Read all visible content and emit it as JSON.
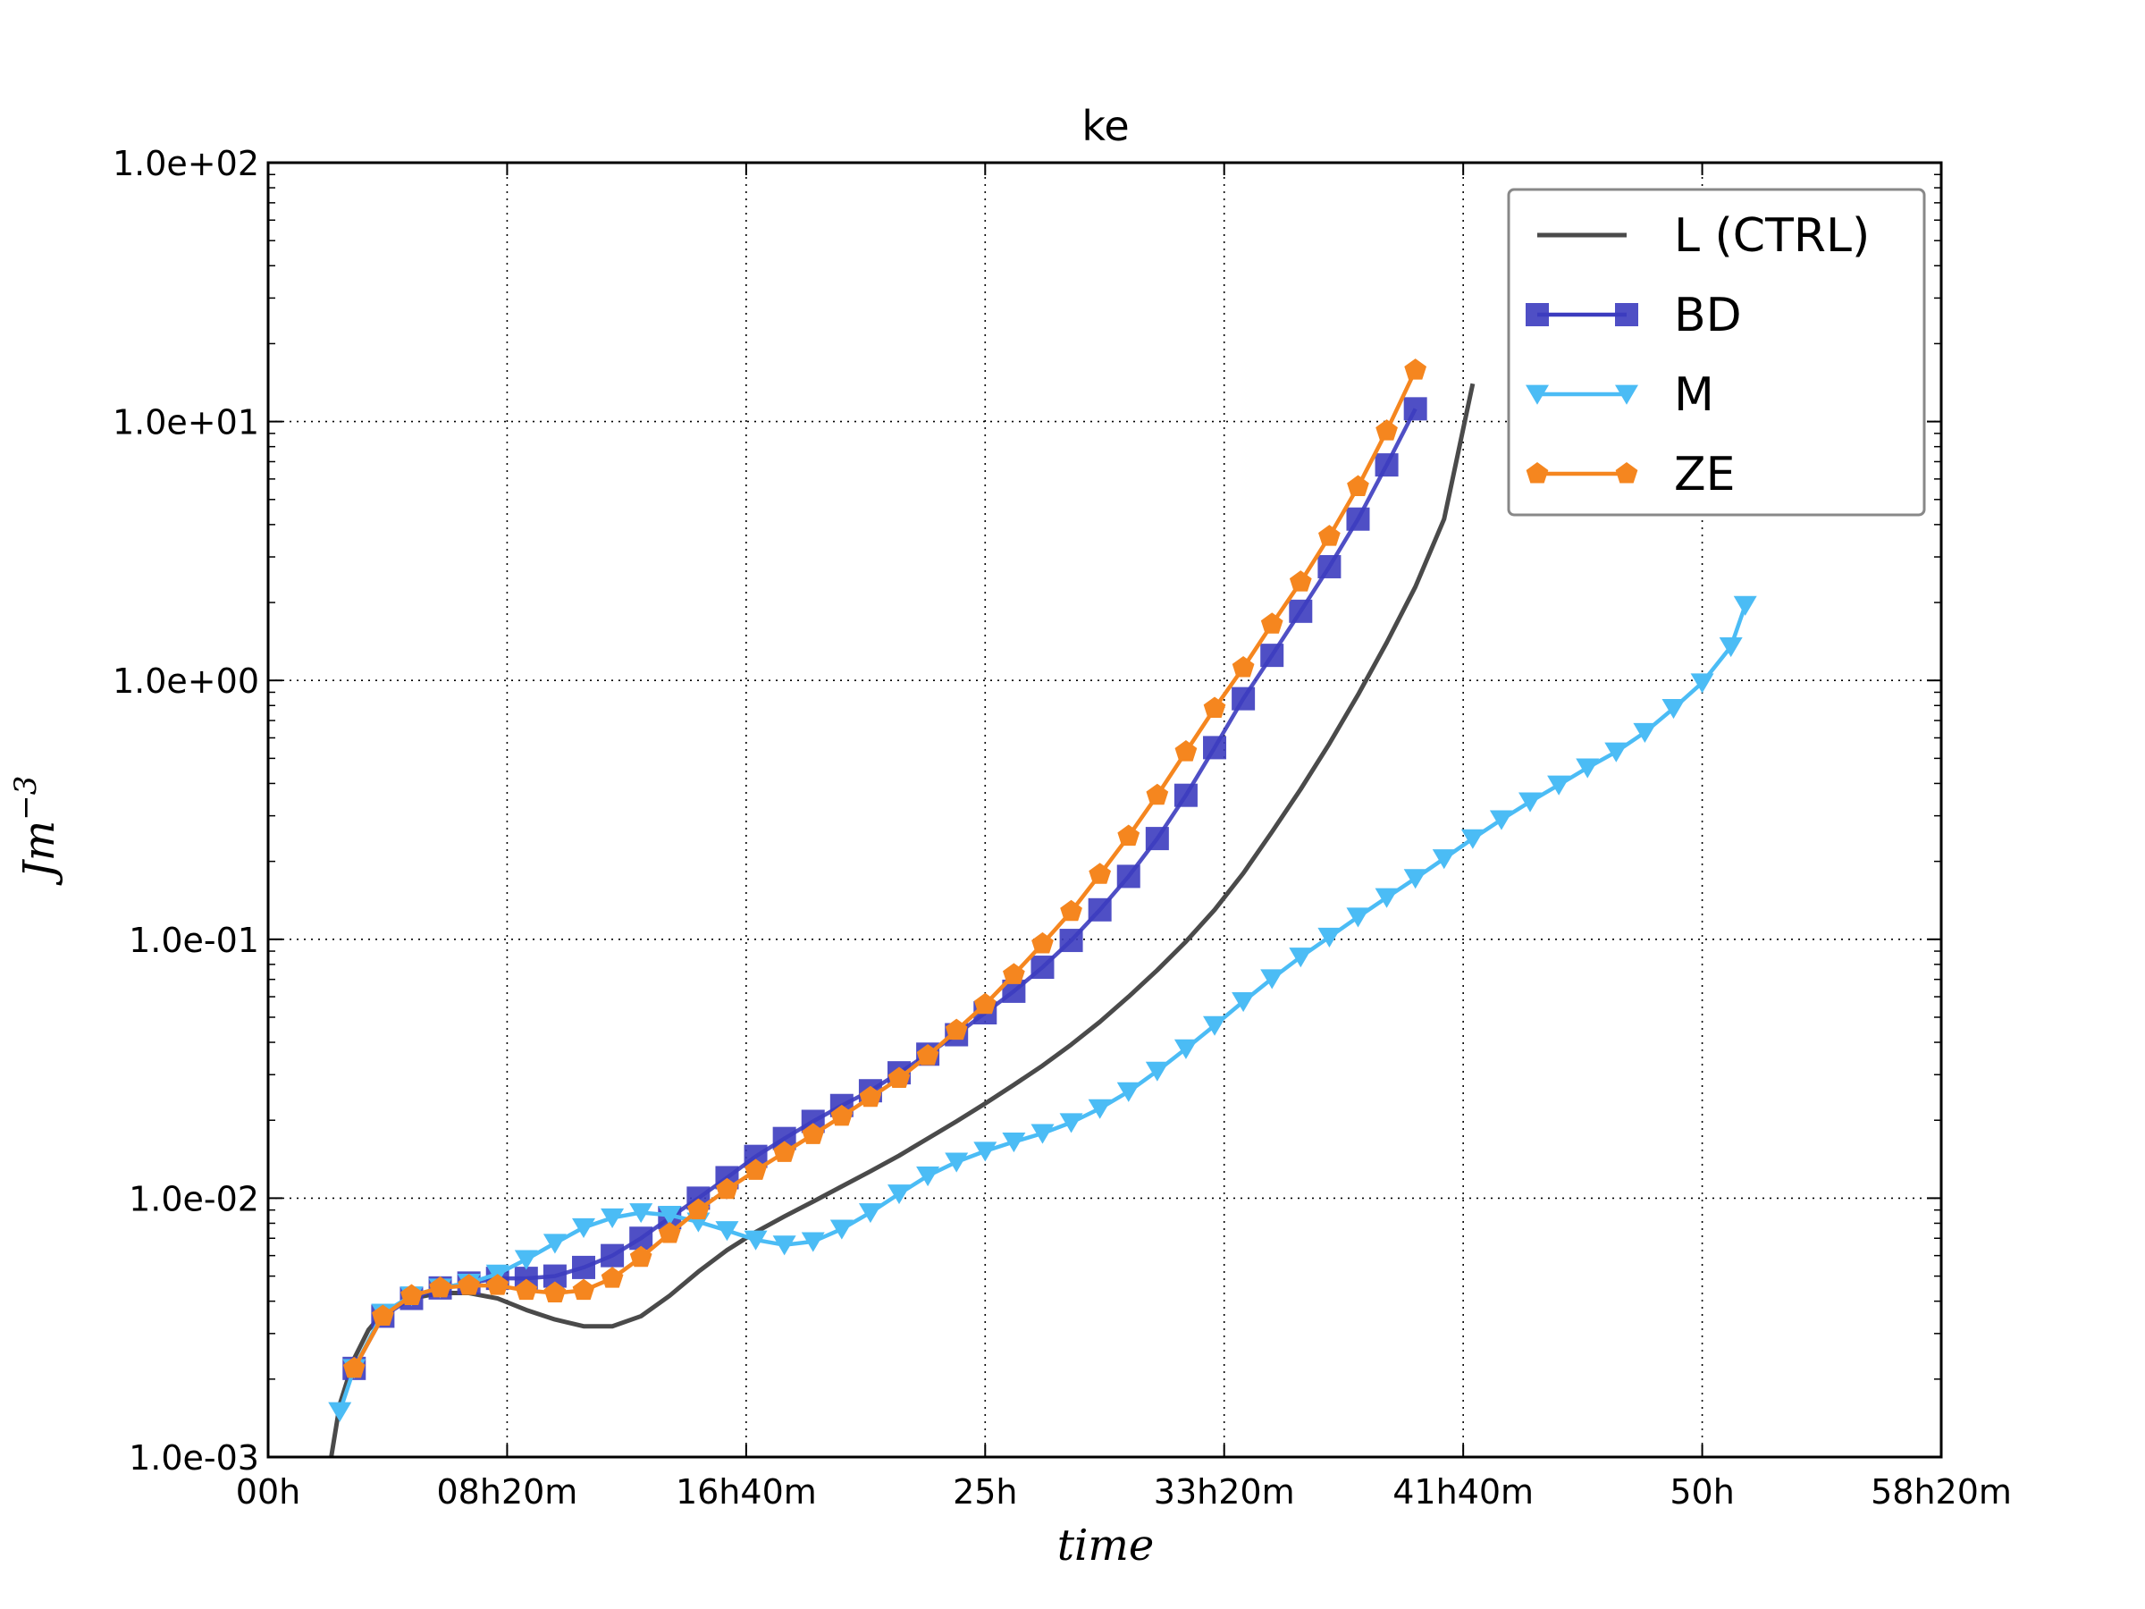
{
  "chart_data": {
    "type": "line",
    "title": "ke",
    "xlabel": "time",
    "ylabel": "Jm",
    "ylabel_exponent": "−3",
    "x_unit": "hours",
    "y_scale": "log",
    "xlim": [
      0,
      58.333
    ],
    "ylim": [
      0.001,
      100
    ],
    "grid": true,
    "legend_position": "top-right",
    "x_ticks": [
      {
        "value": 0,
        "label": "00h"
      },
      {
        "value": 8.333,
        "label": "08h20m"
      },
      {
        "value": 16.667,
        "label": "16h40m"
      },
      {
        "value": 25,
        "label": "25h"
      },
      {
        "value": 33.333,
        "label": "33h20m"
      },
      {
        "value": 41.667,
        "label": "41h40m"
      },
      {
        "value": 50,
        "label": "50h"
      },
      {
        "value": 58.333,
        "label": "58h20m"
      }
    ],
    "y_ticks": [
      {
        "value": 0.001,
        "label": "1.0e-03"
      },
      {
        "value": 0.01,
        "label": "1.0e-02"
      },
      {
        "value": 0.1,
        "label": "1.0e-01"
      },
      {
        "value": 1,
        "label": "1.0e+00"
      },
      {
        "value": 10,
        "label": "1.0e+01"
      },
      {
        "value": 100,
        "label": "1.0e+02"
      }
    ],
    "series": [
      {
        "name": "L (CTRL)",
        "color": "#4a4a4a",
        "marker": "none",
        "x": [
          2.2,
          2.5,
          3.0,
          3.5,
          4.0,
          5.0,
          6.0,
          7.0,
          8.0,
          9.0,
          10.0,
          11.0,
          12.0,
          13.0,
          14.0,
          15.0,
          16.0,
          17.0,
          18.0,
          19.0,
          20.0,
          21.0,
          22.0,
          23.0,
          24.0,
          25.0,
          26.0,
          27.0,
          28.0,
          29.0,
          30.0,
          31.0,
          32.0,
          33.0,
          34.0,
          35.0,
          36.0,
          37.0,
          38.0,
          39.0,
          40.0,
          41.0,
          42.0
        ],
        "y": [
          0.001,
          0.0016,
          0.0024,
          0.0031,
          0.0036,
          0.0041,
          0.0043,
          0.0043,
          0.0041,
          0.0037,
          0.0034,
          0.0032,
          0.0032,
          0.0035,
          0.0042,
          0.0052,
          0.0063,
          0.0074,
          0.0085,
          0.0097,
          0.0111,
          0.0127,
          0.0146,
          0.017,
          0.0198,
          0.0232,
          0.0274,
          0.0325,
          0.0392,
          0.048,
          0.06,
          0.076,
          0.098,
          0.13,
          0.18,
          0.26,
          0.38,
          0.57,
          0.88,
          1.4,
          2.3,
          4.2,
          14
        ]
      },
      {
        "name": "BD",
        "color": "#3c3cbf",
        "marker": "square",
        "x": [
          3.0,
          4.0,
          5.0,
          6.0,
          7.0,
          8.0,
          9.0,
          10.0,
          11.0,
          12.0,
          13.0,
          14.0,
          15.0,
          16.0,
          17.0,
          18.0,
          19.0,
          20.0,
          21.0,
          22.0,
          23.0,
          24.0,
          25.0,
          26.0,
          27.0,
          28.0,
          29.0,
          30.0,
          31.0,
          32.0,
          33.0,
          34.0,
          35.0,
          36.0,
          37.0,
          38.0,
          39.0,
          40.0
        ],
        "y": [
          0.0022,
          0.0035,
          0.0041,
          0.0045,
          0.0047,
          0.0049,
          0.0049,
          0.005,
          0.0054,
          0.006,
          0.007,
          0.0084,
          0.01,
          0.012,
          0.0145,
          0.017,
          0.0198,
          0.0228,
          0.026,
          0.0305,
          0.036,
          0.0428,
          0.052,
          0.063,
          0.078,
          0.099,
          0.13,
          0.175,
          0.245,
          0.36,
          0.55,
          0.85,
          1.25,
          1.85,
          2.75,
          4.2,
          6.8,
          11.2
        ]
      },
      {
        "name": "M",
        "color": "#4bbcf5",
        "marker": "triangle-down",
        "x": [
          2.5,
          3.0,
          4.0,
          5.0,
          6.0,
          7.0,
          8.0,
          9.0,
          10.0,
          11.0,
          12.0,
          13.0,
          14.0,
          15.0,
          16.0,
          17.0,
          18.0,
          19.0,
          20.0,
          21.0,
          22.0,
          23.0,
          24.0,
          25.0,
          26.0,
          27.0,
          28.0,
          29.0,
          30.0,
          31.0,
          32.0,
          33.0,
          34.0,
          35.0,
          36.0,
          37.0,
          38.0,
          39.0,
          40.0,
          41.0,
          42.0,
          43.0,
          44.0,
          45.0,
          46.0,
          47.0,
          48.0,
          49.0,
          50.0,
          51.0,
          51.5
        ],
        "y": [
          0.0015,
          0.0022,
          0.0036,
          0.0042,
          0.0045,
          0.0047,
          0.0051,
          0.0058,
          0.0067,
          0.0077,
          0.0084,
          0.0088,
          0.0086,
          0.0081,
          0.0075,
          0.0069,
          0.0066,
          0.0068,
          0.0076,
          0.0088,
          0.0104,
          0.0122,
          0.0138,
          0.0152,
          0.0165,
          0.0178,
          0.0196,
          0.0222,
          0.0258,
          0.031,
          0.0378,
          0.0465,
          0.0575,
          0.0705,
          0.0855,
          0.102,
          0.122,
          0.145,
          0.172,
          0.205,
          0.245,
          0.29,
          0.34,
          0.395,
          0.46,
          0.53,
          0.63,
          0.78,
          0.98,
          1.35,
          1.95
        ]
      },
      {
        "name": "ZE",
        "color": "#f5861f",
        "marker": "pentagon",
        "x": [
          3.0,
          4.0,
          5.0,
          6.0,
          7.0,
          8.0,
          9.0,
          10.0,
          11.0,
          12.0,
          13.0,
          14.0,
          15.0,
          16.0,
          17.0,
          18.0,
          19.0,
          20.0,
          21.0,
          22.0,
          23.0,
          24.0,
          25.0,
          26.0,
          27.0,
          28.0,
          29.0,
          30.0,
          31.0,
          32.0,
          33.0,
          34.0,
          35.0,
          36.0,
          37.0,
          38.0,
          39.0,
          40.0
        ],
        "y": [
          0.0022,
          0.0035,
          0.0042,
          0.0045,
          0.0046,
          0.0046,
          0.0044,
          0.0043,
          0.0044,
          0.0049,
          0.0059,
          0.0073,
          0.009,
          0.0108,
          0.0128,
          0.015,
          0.0176,
          0.0207,
          0.0245,
          0.029,
          0.0355,
          0.0445,
          0.056,
          0.073,
          0.096,
          0.128,
          0.178,
          0.25,
          0.36,
          0.53,
          0.78,
          1.12,
          1.65,
          2.4,
          3.6,
          5.6,
          9.2,
          15.8
        ]
      }
    ]
  }
}
